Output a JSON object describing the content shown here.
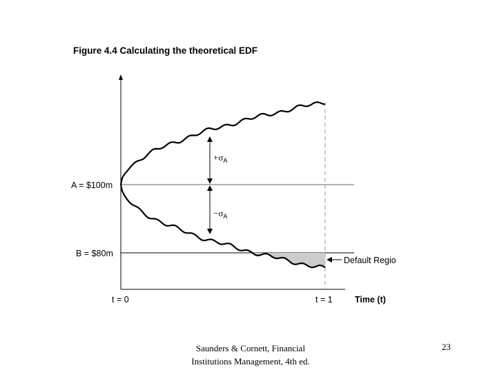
{
  "figure": {
    "title": "Figure 4.4 Calculating the theoretical EDF",
    "asset_label": "A = $100m",
    "barrier_label": "B = $80m",
    "upper_sigma": {
      "symbol": "+σ",
      "subscript": "A"
    },
    "lower_sigma": {
      "symbol": "−σ",
      "subscript": "A"
    },
    "default_region_label": "Default Regio",
    "x_start_label": "t = 0",
    "x_end_label": "t = 1",
    "x_axis_label": "Time (t)"
  },
  "footer": {
    "citation_line1": "Saunders & Cornett, Financial",
    "citation_line2": "Institutions Management, 4th ed.",
    "page_number": "23"
  }
}
